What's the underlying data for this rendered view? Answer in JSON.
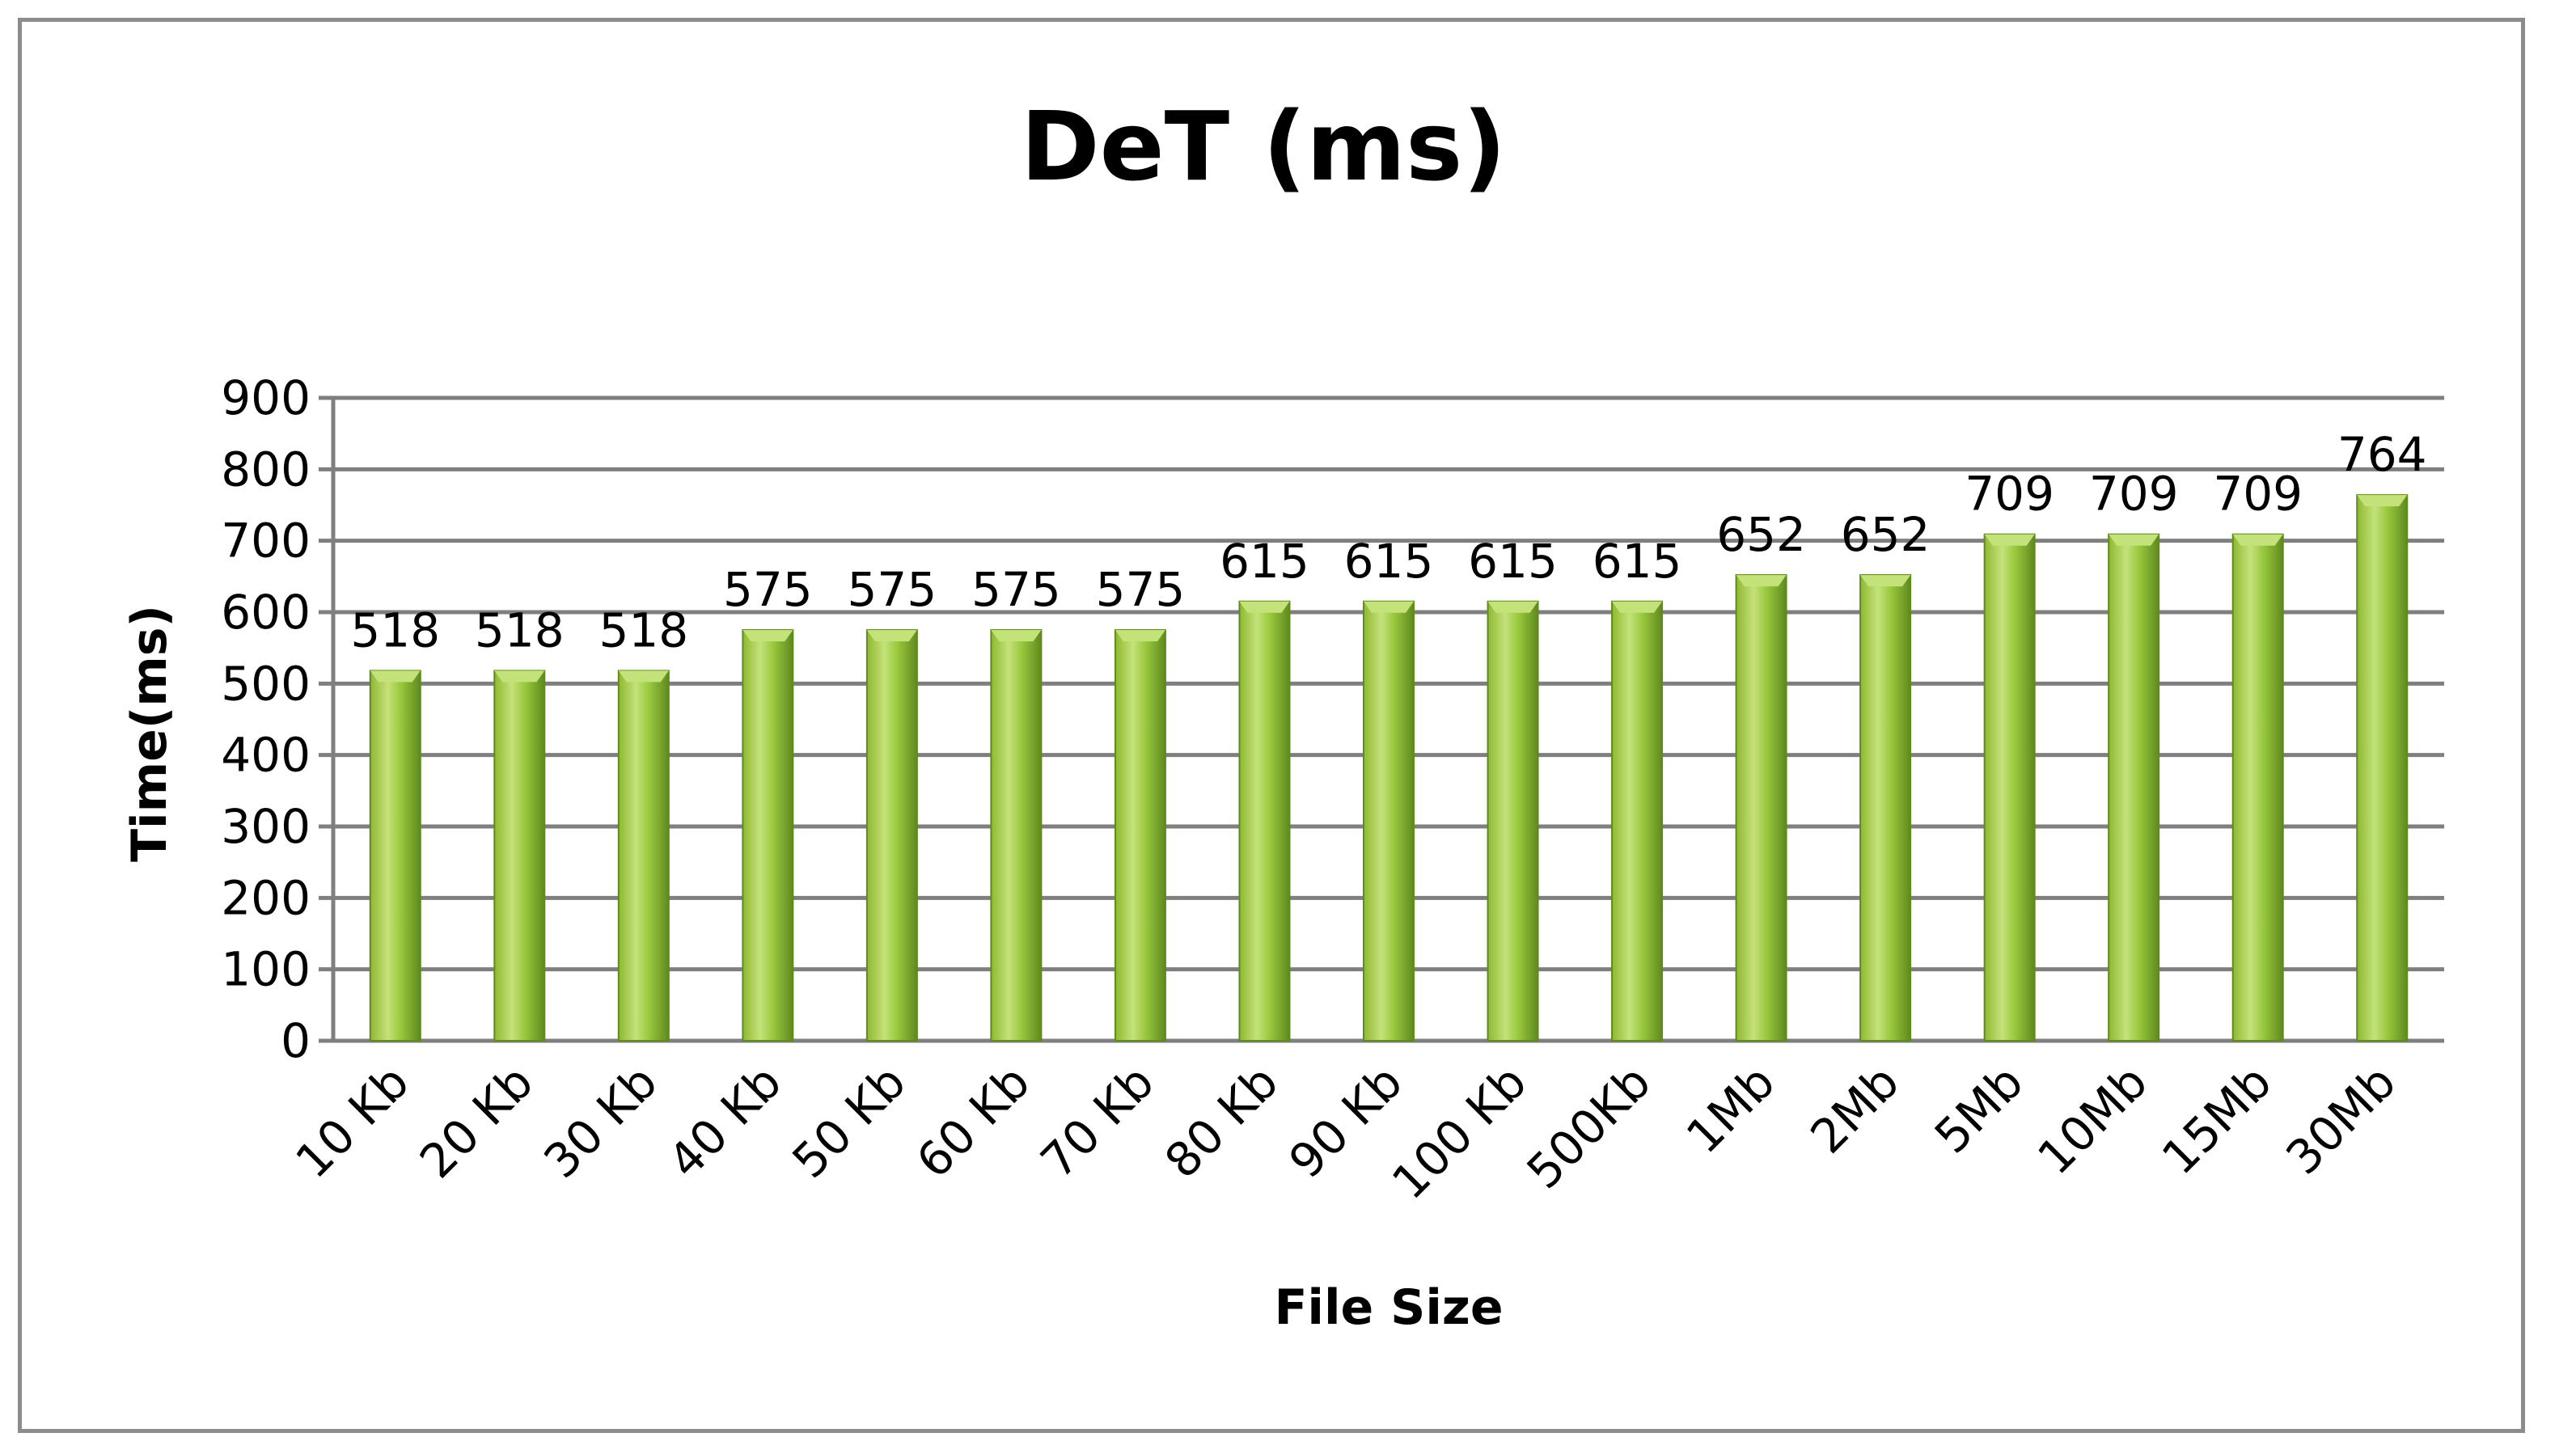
{
  "chart_data": {
    "type": "bar",
    "title": "DeT (ms)",
    "xlabel": "File Size",
    "ylabel": "Time(ms)",
    "ylim": [
      0,
      900
    ],
    "yticks": [
      "0",
      "100",
      "200",
      "300",
      "400",
      "500",
      "600",
      "700",
      "800",
      "900"
    ],
    "grid": true,
    "legend": "none",
    "categories": [
      "10 Kb",
      "20 Kb",
      "30 Kb",
      "40 Kb",
      "50 Kb",
      "60 Kb",
      "70 Kb",
      "80 Kb",
      "90 Kb",
      "100 Kb",
      "500Kb",
      "1Mb",
      "2Mb",
      "5Mb",
      "10Mb",
      "15Mb",
      "30Mb"
    ],
    "values": [
      518,
      518,
      518,
      575,
      575,
      575,
      575,
      615,
      615,
      615,
      615,
      652,
      652,
      709,
      709,
      709,
      764
    ],
    "data_labels": [
      "518",
      "518",
      "518",
      "575",
      "575",
      "575",
      "575",
      "615",
      "615",
      "615",
      "615",
      "652",
      "652",
      "709",
      "709",
      "709",
      "764"
    ],
    "bar_color": "#8fb830",
    "bar_highlight_color": "#c4e27a",
    "bar_shadow_color": "#5f8a1e"
  }
}
